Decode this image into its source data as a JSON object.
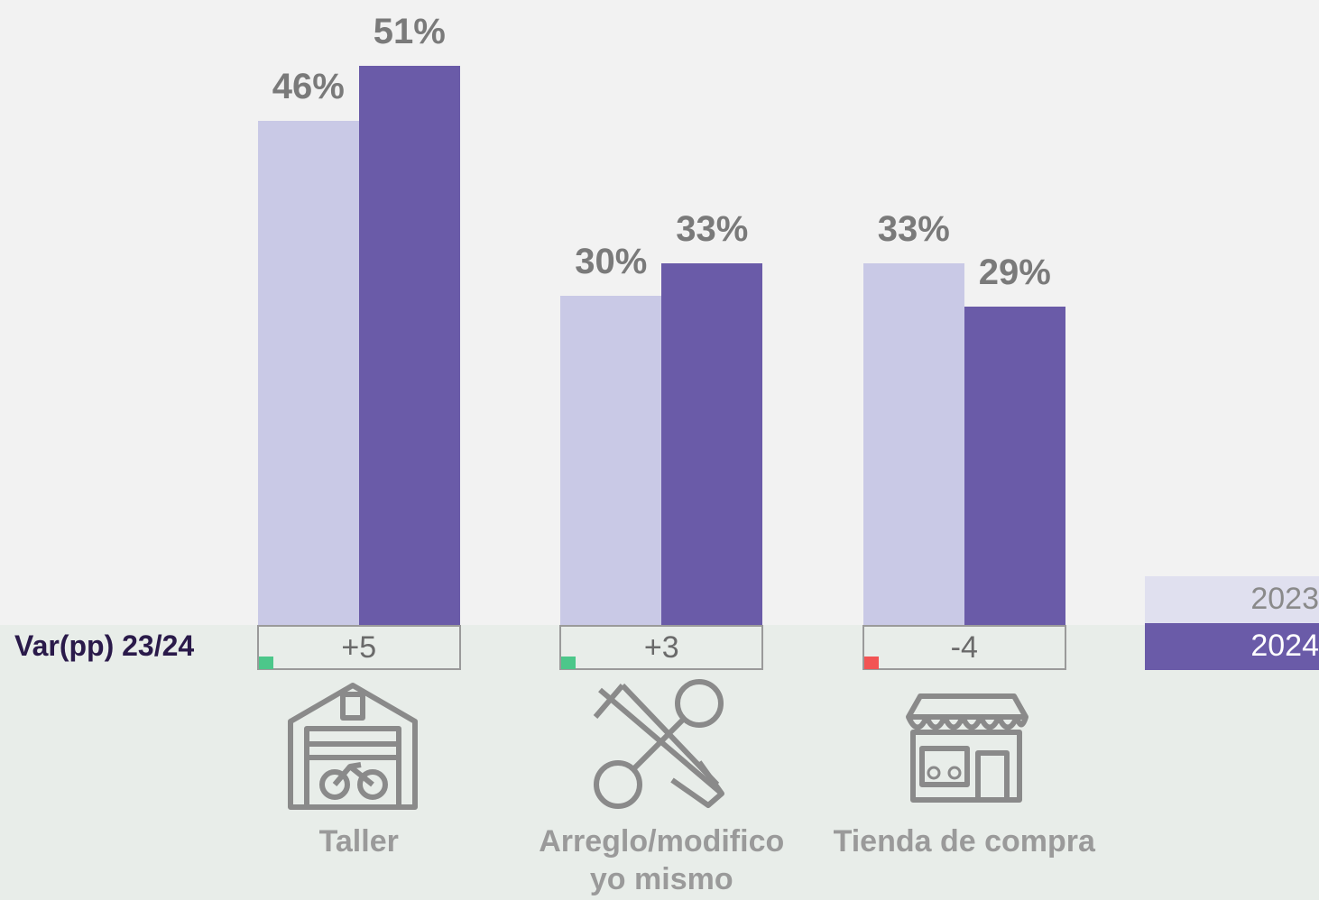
{
  "chart_data": {
    "type": "bar",
    "categories": [
      "Taller",
      "Arreglo/modifico yo mismo",
      "Tienda de compra"
    ],
    "series": [
      {
        "name": "2023",
        "color": "#c9c9e6",
        "values": [
          46,
          30,
          33
        ],
        "value_labels": [
          "46%",
          "30%",
          "33%"
        ]
      },
      {
        "name": "2024",
        "color": "#6a5ba8",
        "values": [
          51,
          33,
          29
        ],
        "value_labels": [
          "51%",
          "33%",
          "29%"
        ]
      }
    ],
    "ylim": [
      0,
      57
    ],
    "variation": {
      "label": "Var(pp) 23/24",
      "values": [
        5,
        3,
        -4
      ],
      "value_labels": [
        "+5",
        "+3",
        "-4"
      ]
    }
  }
}
